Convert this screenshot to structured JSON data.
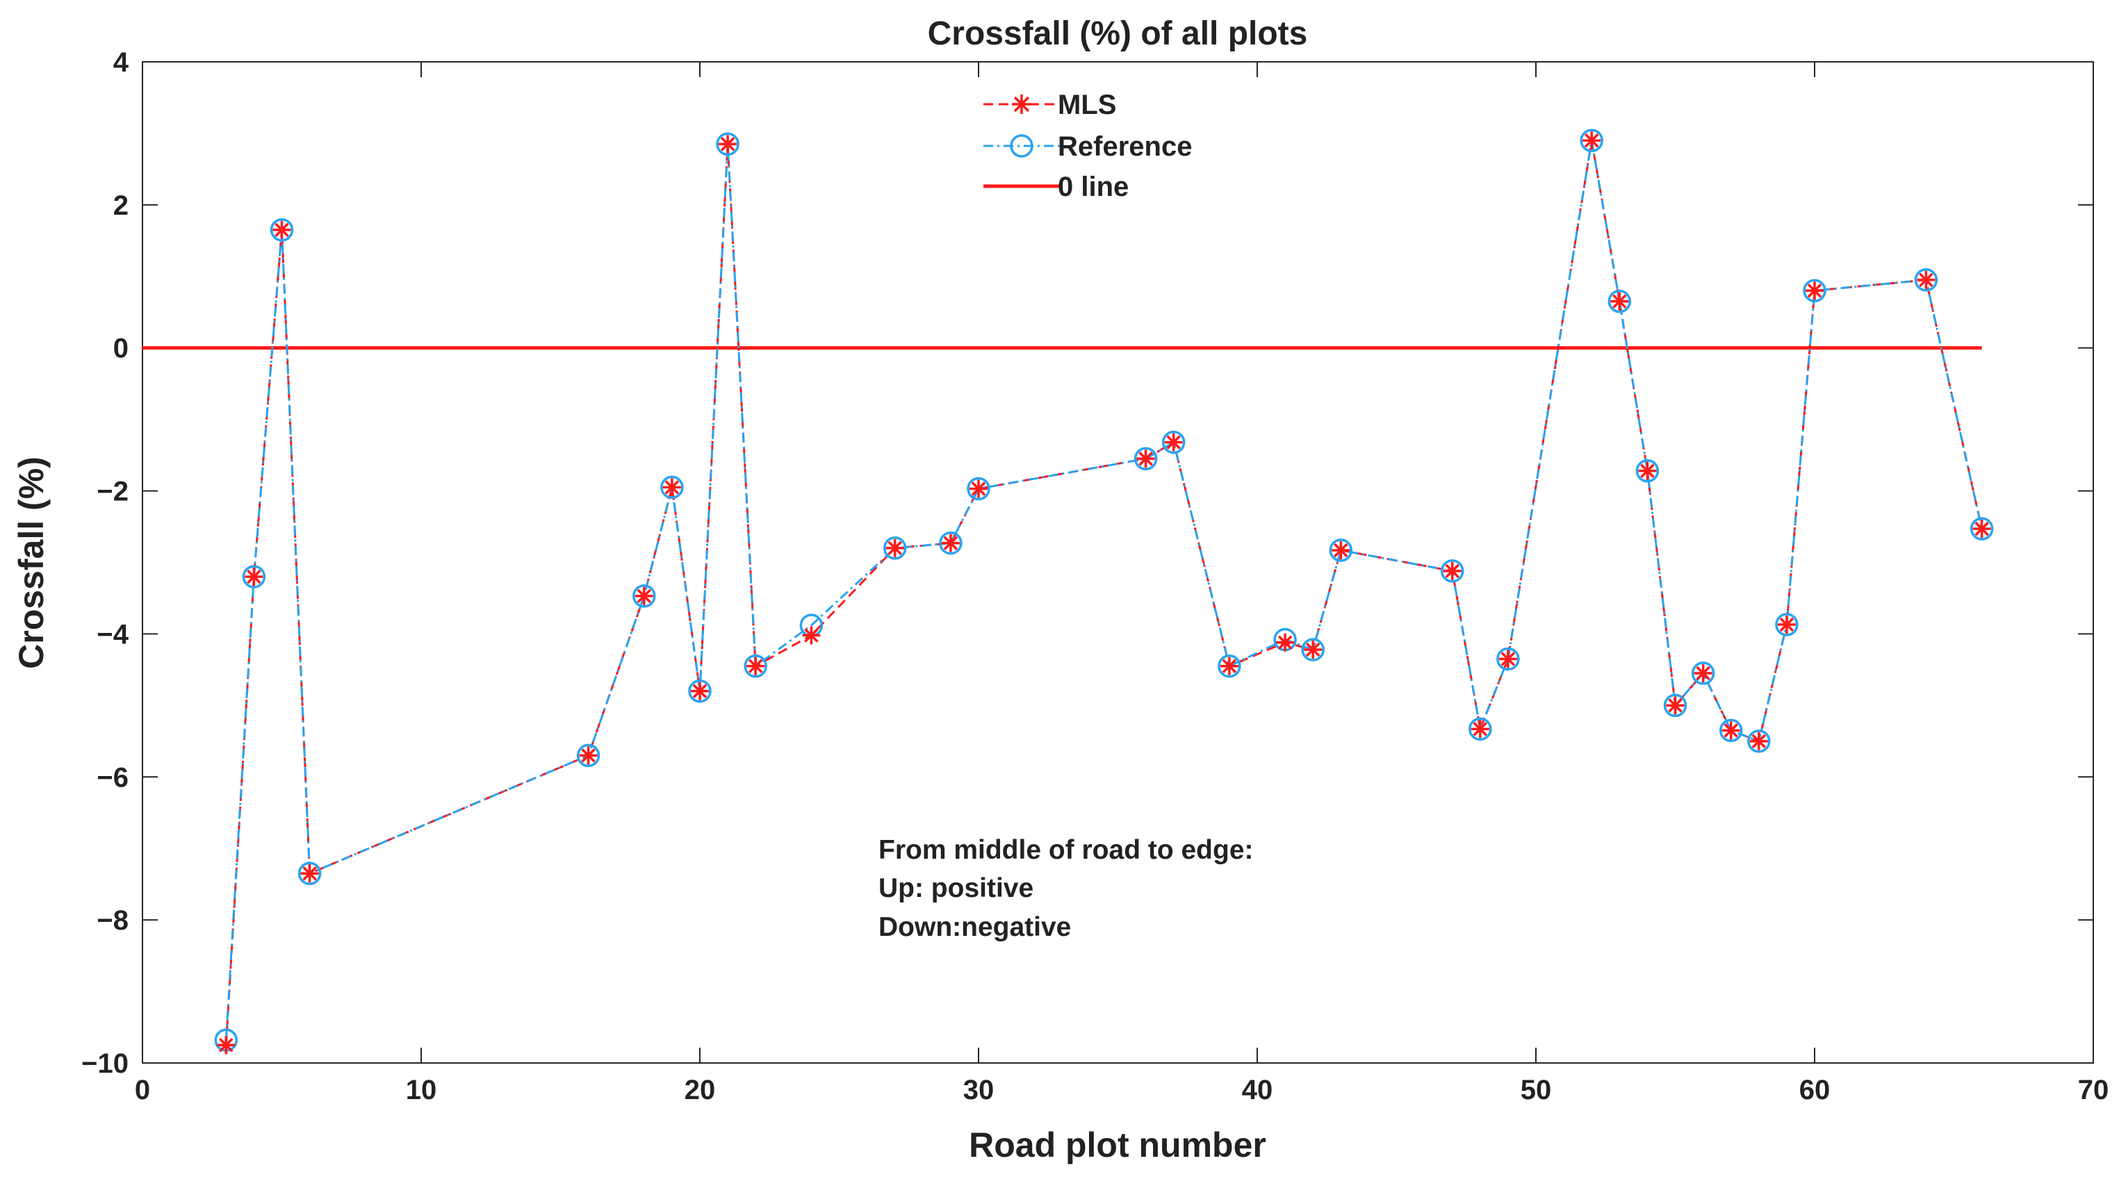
{
  "chart_data": {
    "type": "line",
    "title": "Crossfall (%) of all plots",
    "xlabel": "Road plot number",
    "ylabel": "Crossfall (%)",
    "xlim": [
      0,
      70
    ],
    "ylim": [
      -10,
      4
    ],
    "xticks": [
      0,
      10,
      20,
      30,
      40,
      50,
      60,
      70
    ],
    "yticks": [
      -10,
      -8,
      -6,
      -4,
      -2,
      0,
      2,
      4
    ],
    "ytick_labels": [
      "−10",
      "−8",
      "−6",
      "−4",
      "−2",
      "0",
      "2",
      "4"
    ],
    "x": [
      3,
      4,
      5,
      6,
      16,
      18,
      19,
      20,
      21,
      22,
      24,
      27,
      29,
      30,
      36,
      37,
      39,
      41,
      42,
      43,
      47,
      48,
      49,
      52,
      53,
      54,
      55,
      56,
      57,
      58,
      59,
      60,
      64,
      66
    ],
    "series": [
      {
        "name": "MLS",
        "color": "#ff1a1a",
        "marker": "asterisk",
        "values": [
          -9.75,
          -3.2,
          1.65,
          -7.35,
          -5.7,
          -3.47,
          -1.95,
          -4.8,
          2.85,
          -4.45,
          -4.02,
          -2.8,
          -2.73,
          -1.97,
          -1.55,
          -1.32,
          -4.45,
          -4.12,
          -4.22,
          -2.83,
          -3.12,
          -5.33,
          -4.35,
          2.9,
          0.65,
          -1.72,
          -5.0,
          -4.55,
          -5.35,
          -5.5,
          -3.87,
          0.8,
          0.95,
          -2.53
        ]
      },
      {
        "name": "Reference",
        "color": "#29a3f0",
        "marker": "circle",
        "values": [
          -9.68,
          -3.2,
          1.65,
          -7.35,
          -5.7,
          -3.47,
          -1.95,
          -4.8,
          2.85,
          -4.45,
          -3.88,
          -2.8,
          -2.73,
          -1.97,
          -1.55,
          -1.32,
          -4.45,
          -4.08,
          -4.22,
          -2.83,
          -3.12,
          -5.33,
          -4.35,
          2.9,
          0.65,
          -1.72,
          -5.0,
          -4.55,
          -5.35,
          -5.5,
          -3.87,
          0.8,
          0.95,
          -2.53
        ]
      },
      {
        "name": "0 line",
        "color": "#ff1a1a",
        "x": [
          0,
          66
        ],
        "values": [
          0,
          0
        ]
      }
    ],
    "legend": {
      "placement": "top-center",
      "entries": [
        "MLS",
        "Reference",
        "0 line"
      ]
    },
    "annotation": {
      "lines": [
        "From middle of road to edge:",
        "Up: positive",
        "Down:negative"
      ]
    }
  }
}
